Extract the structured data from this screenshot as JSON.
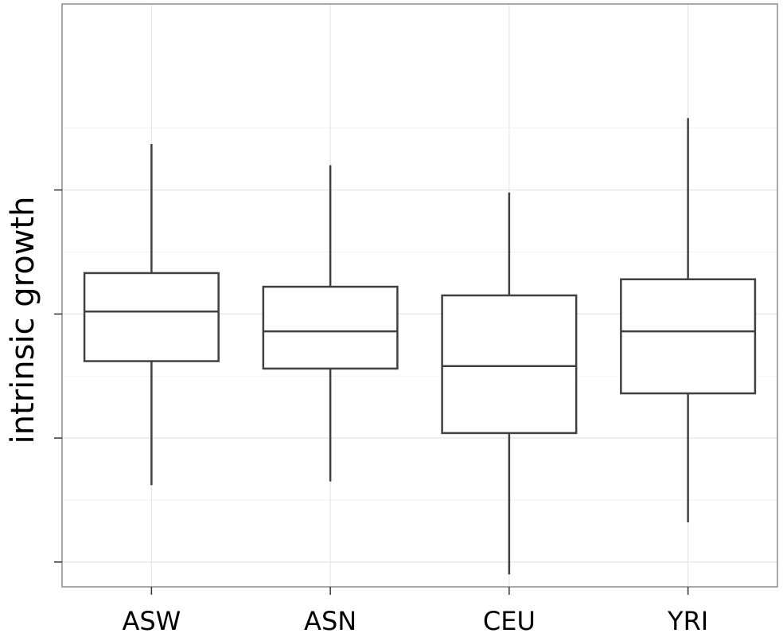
{
  "chart_data": {
    "type": "box",
    "title": "",
    "xlabel": "",
    "ylabel": "intrinsic growth",
    "categories": [
      "ASW",
      "ASN",
      "CEU",
      "YRI"
    ],
    "ylim": [
      -1.2,
      3.5
    ],
    "yticks": [
      -1,
      0,
      1,
      2
    ],
    "ytick_labels_shown": false,
    "grid": true,
    "legend": "none",
    "boxes": [
      {
        "category": "ASW",
        "whisker_low": -0.38,
        "q1": 0.62,
        "median": 1.02,
        "q3": 1.33,
        "whisker_high": 2.37
      },
      {
        "category": "ASN",
        "whisker_low": -0.35,
        "q1": 0.56,
        "median": 0.86,
        "q3": 1.22,
        "whisker_high": 2.2
      },
      {
        "category": "CEU",
        "whisker_low": -1.1,
        "q1": 0.04,
        "median": 0.58,
        "q3": 1.15,
        "whisker_high": 1.98
      },
      {
        "category": "YRI",
        "whisker_low": -0.68,
        "q1": 0.36,
        "median": 0.86,
        "q3": 1.28,
        "whisker_high": 2.58
      }
    ]
  },
  "colors": {
    "box_stroke": "#404040",
    "panel_border": "#8c8c8c",
    "grid_major": "#e6e6e6",
    "grid_minor": "#f2f2f2",
    "text": "#000000"
  }
}
